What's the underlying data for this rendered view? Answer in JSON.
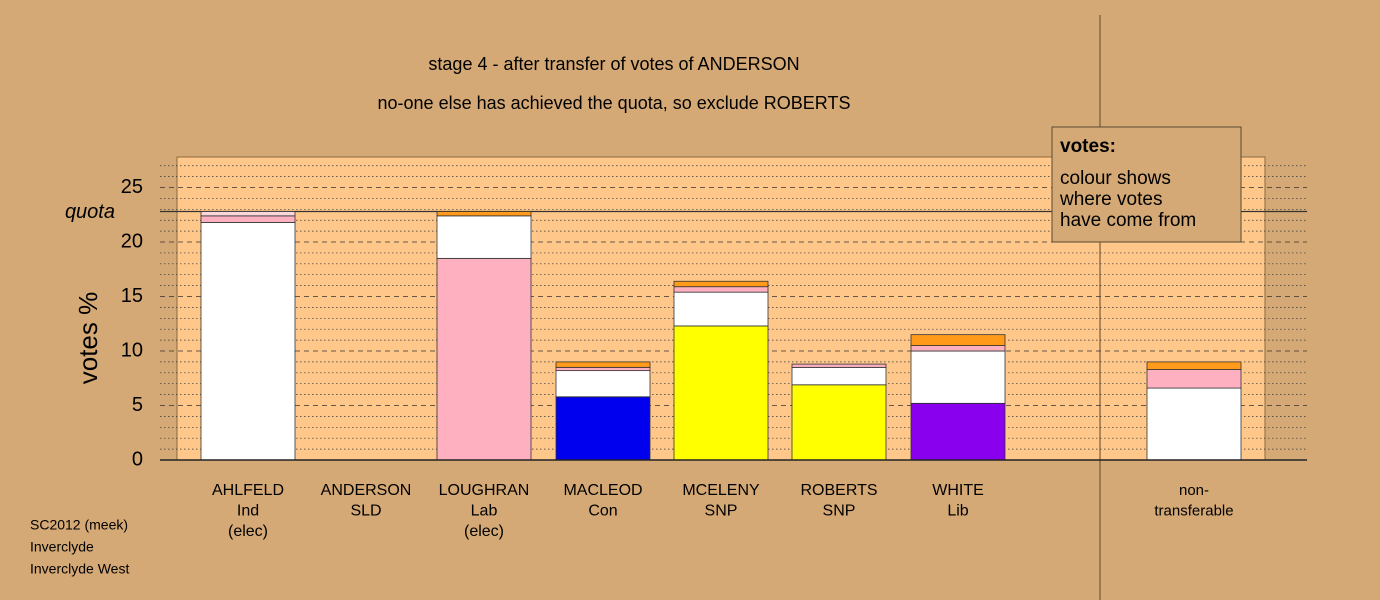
{
  "chart_data": {
    "type": "stacked-bar",
    "title": "stage 4 - after transfer of votes of ANDERSON",
    "subtitle": "no-one else has achieved the quota, so exclude ROBERTS",
    "y_label": "votes %",
    "ylim": [
      0,
      27.8
    ],
    "yticks": [
      0,
      5,
      10,
      15,
      20,
      25
    ],
    "minor_yticks": [
      1,
      2,
      3,
      4,
      6,
      7,
      8,
      9,
      11,
      12,
      13,
      14,
      16,
      17,
      18,
      19,
      21,
      22,
      23,
      24,
      26,
      27
    ],
    "grid": true,
    "quota": {
      "value": 22.8,
      "label": "quota"
    },
    "categories": [
      [
        "AHLFELD",
        "Ind",
        "(elec)"
      ],
      [
        "ANDERSON",
        "SLD"
      ],
      [
        "LOUGHRAN",
        "Lab",
        "(elec)"
      ],
      [
        "MACLEOD",
        "Con"
      ],
      [
        "MCELENY",
        "SNP"
      ],
      [
        "ROBERTS",
        "SNP"
      ],
      [
        "WHITE",
        "Lib"
      ],
      [
        "non-",
        "transferable"
      ]
    ],
    "stacks": [
      [
        {
          "value": 21.8,
          "color": "#ffffff"
        },
        {
          "value": 0.6,
          "color": "#ffb0c0"
        },
        {
          "value": 0.4,
          "color": "#ffd6dc"
        }
      ],
      [],
      [
        {
          "value": 18.5,
          "color": "#ffb0c0"
        },
        {
          "value": 3.9,
          "color": "#ffffff"
        },
        {
          "value": 0.4,
          "color": "#ff9a1a"
        }
      ],
      [
        {
          "value": 5.8,
          "color": "#0000ee"
        },
        {
          "value": 2.4,
          "color": "#ffffff"
        },
        {
          "value": 0.3,
          "color": "#ffb0c0"
        },
        {
          "value": 0.5,
          "color": "#ff9a1a"
        }
      ],
      [
        {
          "value": 12.3,
          "color": "#ffff00"
        },
        {
          "value": 3.1,
          "color": "#ffffff"
        },
        {
          "value": 0.5,
          "color": "#ffb0c0"
        },
        {
          "value": 0.5,
          "color": "#ff9a1a"
        }
      ],
      [
        {
          "value": 6.9,
          "color": "#ffff00"
        },
        {
          "value": 1.6,
          "color": "#ffffff"
        },
        {
          "value": 0.3,
          "color": "#ffb0c0"
        }
      ],
      [
        {
          "value": 5.2,
          "color": "#8800ee"
        },
        {
          "value": 4.8,
          "color": "#ffffff"
        },
        {
          "value": 0.5,
          "color": "#ffb0c0"
        },
        {
          "value": 1.0,
          "color": "#ff9a1a"
        }
      ],
      [
        {
          "value": 6.6,
          "color": "#ffffff"
        },
        {
          "value": 1.7,
          "color": "#ffb0c0"
        },
        {
          "value": 0.7,
          "color": "#ff9a1a"
        }
      ]
    ],
    "legend": {
      "title": "votes:",
      "lines": [
        "colour shows",
        "where votes",
        "have come from"
      ]
    },
    "footer": [
      "SC2012 (meek)",
      "Inverclyde",
      "Inverclyde West"
    ]
  }
}
